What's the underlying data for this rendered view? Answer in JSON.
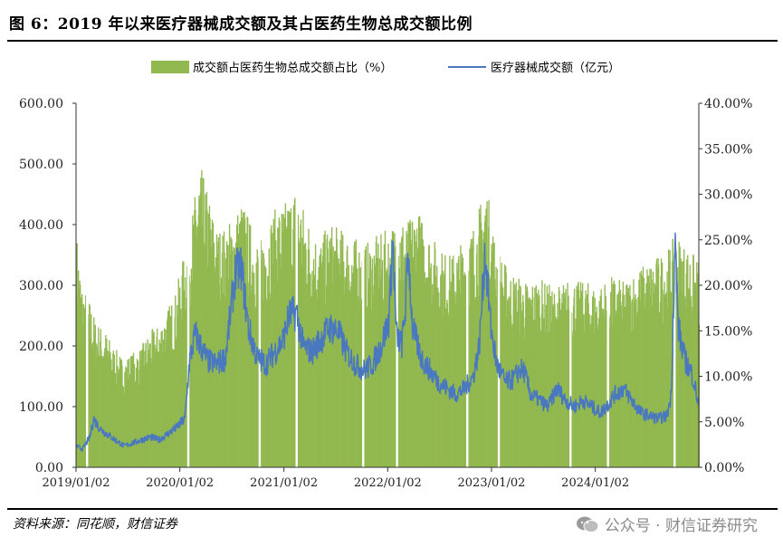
{
  "header": {
    "title": "图 6：2019 年以来医疗器械成交额及其占医药生物总成交额比例"
  },
  "footer": {
    "source": "资料来源：同花顺，财信证券",
    "watermark": "公众号 · 财信证券研究",
    "watermark_icon": "wechat-icon"
  },
  "colors": {
    "bar": "#92b850",
    "line": "#4a78c0",
    "axis": "#333333"
  },
  "chart_data": {
    "type": "bar+line",
    "title": "",
    "legend": {
      "placement": "top-center",
      "items": [
        {
          "name": "成交额占医药生物总成交额占比（%）",
          "kind": "bar"
        },
        {
          "name": "医疗器械成交额（亿元）",
          "kind": "line"
        }
      ]
    },
    "x_axis": {
      "type": "date",
      "range": [
        "2019-01-02",
        "2024-12-31"
      ],
      "tick_labels": [
        "2019/01/02",
        "2020/01/02",
        "2021/01/02",
        "2022/01/02",
        "2023/01/02",
        "2024/01/02"
      ]
    },
    "y_left": {
      "label": "",
      "range": [
        0,
        600
      ],
      "tick_labels": [
        "0.00",
        "100.00",
        "200.00",
        "300.00",
        "400.00",
        "500.00",
        "600.00"
      ]
    },
    "y_right": {
      "label": "",
      "range": [
        0,
        40
      ],
      "tick_labels": [
        "0.00%",
        "5.00%",
        "10.00%",
        "15.00%",
        "20.00%",
        "25.00%",
        "30.00%",
        "35.00%",
        "40.00%"
      ]
    },
    "grid": false,
    "series": [
      {
        "name": "成交额占医药生物总成交额占比（%）",
        "axis": "right",
        "kind": "bar",
        "unit": "%",
        "points": [
          [
            "2019-01-02",
            21.5
          ],
          [
            "2019-01-20",
            17.0
          ],
          [
            "2019-02-15",
            15.5
          ],
          [
            "2019-03-10",
            13.5
          ],
          [
            "2019-04-15",
            12.5
          ],
          [
            "2019-05-15",
            11.0
          ],
          [
            "2019-06-15",
            10.0
          ],
          [
            "2019-07-15",
            10.5
          ],
          [
            "2019-08-15",
            11.0
          ],
          [
            "2019-09-15",
            12.5
          ],
          [
            "2019-10-15",
            13.0
          ],
          [
            "2019-11-15",
            14.5
          ],
          [
            "2019-12-15",
            16.0
          ],
          [
            "2020-01-10",
            19.0
          ],
          [
            "2020-02-10",
            23.0
          ],
          [
            "2020-03-10",
            28.0
          ],
          [
            "2020-04-10",
            25.0
          ],
          [
            "2020-05-10",
            22.0
          ],
          [
            "2020-06-10",
            22.0
          ],
          [
            "2020-07-10",
            23.5
          ],
          [
            "2020-08-10",
            24.5
          ],
          [
            "2020-09-10",
            22.0
          ],
          [
            "2020-10-10",
            21.0
          ],
          [
            "2020-11-10",
            23.0
          ],
          [
            "2020-12-10",
            24.0
          ],
          [
            "2021-01-10",
            24.5
          ],
          [
            "2021-02-10",
            26.0
          ],
          [
            "2021-03-10",
            24.0
          ],
          [
            "2021-04-10",
            22.0
          ],
          [
            "2021-05-10",
            21.0
          ],
          [
            "2021-06-10",
            22.5
          ],
          [
            "2021-07-10",
            22.0
          ],
          [
            "2021-08-10",
            21.5
          ],
          [
            "2021-09-10",
            21.0
          ],
          [
            "2021-10-10",
            20.5
          ],
          [
            "2021-11-10",
            21.0
          ],
          [
            "2021-12-10",
            21.5
          ],
          [
            "2022-01-10",
            22.0
          ],
          [
            "2022-02-10",
            23.5
          ],
          [
            "2022-03-10",
            22.5
          ],
          [
            "2022-04-10",
            24.0
          ],
          [
            "2022-05-10",
            22.5
          ],
          [
            "2022-06-10",
            21.0
          ],
          [
            "2022-07-10",
            20.0
          ],
          [
            "2022-08-10",
            19.5
          ],
          [
            "2022-09-10",
            20.5
          ],
          [
            "2022-10-10",
            21.5
          ],
          [
            "2022-11-10",
            23.0
          ],
          [
            "2022-12-10",
            26.5
          ],
          [
            "2023-01-10",
            21.5
          ],
          [
            "2023-02-10",
            19.0
          ],
          [
            "2023-03-10",
            18.0
          ],
          [
            "2023-04-10",
            17.5
          ],
          [
            "2023-05-10",
            17.0
          ],
          [
            "2023-06-10",
            17.5
          ],
          [
            "2023-07-10",
            17.0
          ],
          [
            "2023-08-10",
            16.5
          ],
          [
            "2023-09-10",
            17.0
          ],
          [
            "2023-10-10",
            17.5
          ],
          [
            "2023-11-10",
            17.0
          ],
          [
            "2023-12-10",
            17.0
          ],
          [
            "2024-01-10",
            16.5
          ],
          [
            "2024-02-10",
            17.5
          ],
          [
            "2024-03-10",
            17.5
          ],
          [
            "2024-04-10",
            17.0
          ],
          [
            "2024-05-10",
            18.0
          ],
          [
            "2024-06-10",
            18.5
          ],
          [
            "2024-07-10",
            19.0
          ],
          [
            "2024-08-10",
            19.5
          ],
          [
            "2024-09-10",
            20.0
          ],
          [
            "2024-10-10",
            21.5
          ],
          [
            "2024-11-10",
            20.5
          ],
          [
            "2024-12-31",
            19.0
          ]
        ]
      },
      {
        "name": "医疗器械成交额（亿元）",
        "axis": "left",
        "kind": "line",
        "unit": "亿元",
        "points": [
          [
            "2019-01-02",
            35
          ],
          [
            "2019-01-25",
            30
          ],
          [
            "2019-02-20",
            50
          ],
          [
            "2019-03-05",
            80
          ],
          [
            "2019-03-25",
            65
          ],
          [
            "2019-04-20",
            55
          ],
          [
            "2019-05-20",
            45
          ],
          [
            "2019-06-20",
            35
          ],
          [
            "2019-07-20",
            40
          ],
          [
            "2019-08-20",
            45
          ],
          [
            "2019-09-20",
            50
          ],
          [
            "2019-10-20",
            45
          ],
          [
            "2019-11-20",
            55
          ],
          [
            "2019-12-20",
            65
          ],
          [
            "2020-01-20",
            80
          ],
          [
            "2020-02-05",
            175
          ],
          [
            "2020-02-25",
            220
          ],
          [
            "2020-03-15",
            200
          ],
          [
            "2020-04-10",
            175
          ],
          [
            "2020-05-10",
            170
          ],
          [
            "2020-06-10",
            180
          ],
          [
            "2020-06-30",
            260
          ],
          [
            "2020-07-15",
            320
          ],
          [
            "2020-08-05",
            330
          ],
          [
            "2020-08-30",
            230
          ],
          [
            "2020-09-30",
            180
          ],
          [
            "2020-10-30",
            170
          ],
          [
            "2020-11-30",
            190
          ],
          [
            "2020-12-30",
            210
          ],
          [
            "2021-01-20",
            250
          ],
          [
            "2021-02-15",
            255
          ],
          [
            "2021-03-10",
            200
          ],
          [
            "2021-04-10",
            190
          ],
          [
            "2021-05-10",
            210
          ],
          [
            "2021-06-10",
            230
          ],
          [
            "2021-07-10",
            225
          ],
          [
            "2021-08-10",
            190
          ],
          [
            "2021-09-10",
            170
          ],
          [
            "2021-10-10",
            160
          ],
          [
            "2021-11-10",
            170
          ],
          [
            "2021-12-10",
            200
          ],
          [
            "2022-01-05",
            240
          ],
          [
            "2022-01-20",
            375
          ],
          [
            "2022-02-01",
            220
          ],
          [
            "2022-02-20",
            200
          ],
          [
            "2022-03-05",
            260
          ],
          [
            "2022-03-15",
            360
          ],
          [
            "2022-03-30",
            230
          ],
          [
            "2022-04-30",
            180
          ],
          [
            "2022-05-30",
            160
          ],
          [
            "2022-06-30",
            140
          ],
          [
            "2022-07-30",
            130
          ],
          [
            "2022-08-30",
            120
          ],
          [
            "2022-09-30",
            130
          ],
          [
            "2022-10-30",
            150
          ],
          [
            "2022-11-20",
            200
          ],
          [
            "2022-12-10",
            355
          ],
          [
            "2022-12-31",
            230
          ],
          [
            "2023-01-20",
            170
          ],
          [
            "2023-02-20",
            140
          ],
          [
            "2023-03-20",
            145
          ],
          [
            "2023-04-10",
            160
          ],
          [
            "2023-04-25",
            160
          ],
          [
            "2023-05-20",
            120
          ],
          [
            "2023-06-20",
            110
          ],
          [
            "2023-07-20",
            100
          ],
          [
            "2023-08-20",
            130
          ],
          [
            "2023-09-20",
            110
          ],
          [
            "2023-10-20",
            100
          ],
          [
            "2023-11-20",
            110
          ],
          [
            "2023-12-20",
            100
          ],
          [
            "2024-01-20",
            90
          ],
          [
            "2024-02-10",
            100
          ],
          [
            "2024-03-10",
            120
          ],
          [
            "2024-04-10",
            130
          ],
          [
            "2024-05-10",
            110
          ],
          [
            "2024-06-10",
            90
          ],
          [
            "2024-07-10",
            85
          ],
          [
            "2024-08-10",
            80
          ],
          [
            "2024-09-10",
            85
          ],
          [
            "2024-09-25",
            120
          ],
          [
            "2024-10-08",
            375
          ],
          [
            "2024-10-20",
            230
          ],
          [
            "2024-11-10",
            180
          ],
          [
            "2024-12-10",
            150
          ],
          [
            "2024-12-31",
            100
          ]
        ]
      }
    ]
  }
}
